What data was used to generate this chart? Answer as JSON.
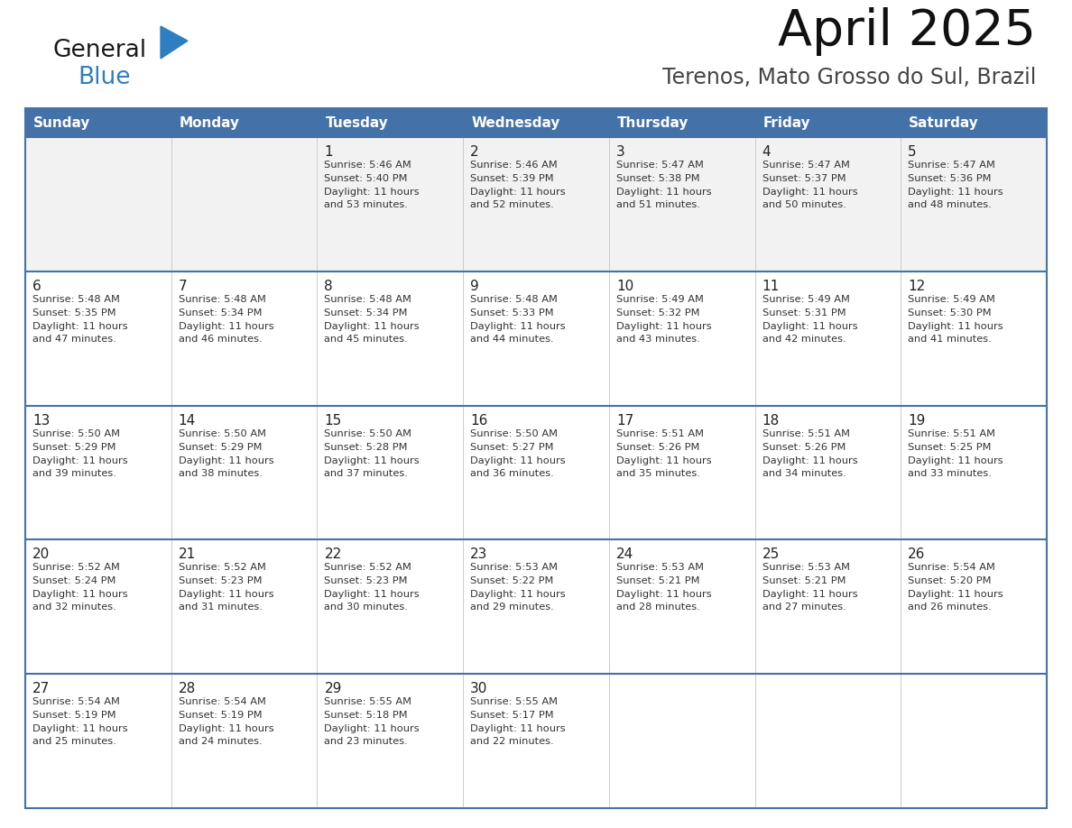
{
  "title": "April 2025",
  "subtitle": "Terenos, Mato Grosso do Sul, Brazil",
  "days_of_week": [
    "Sunday",
    "Monday",
    "Tuesday",
    "Wednesday",
    "Thursday",
    "Friday",
    "Saturday"
  ],
  "header_bg": "#4472a8",
  "header_text": "#ffffff",
  "row_separator_color": "#4472a8",
  "cell_bg": "#ffffff",
  "first_row_bg": "#f0f0f0",
  "text_color": "#333333",
  "day_number_color": "#222222",
  "calendar_data": [
    [
      null,
      null,
      {
        "day": 1,
        "sunrise": "5:46 AM",
        "sunset": "5:40 PM",
        "daylight": "11 hours and 53 minutes"
      },
      {
        "day": 2,
        "sunrise": "5:46 AM",
        "sunset": "5:39 PM",
        "daylight": "11 hours and 52 minutes"
      },
      {
        "day": 3,
        "sunrise": "5:47 AM",
        "sunset": "5:38 PM",
        "daylight": "11 hours and 51 minutes"
      },
      {
        "day": 4,
        "sunrise": "5:47 AM",
        "sunset": "5:37 PM",
        "daylight": "11 hours and 50 minutes"
      },
      {
        "day": 5,
        "sunrise": "5:47 AM",
        "sunset": "5:36 PM",
        "daylight": "11 hours and 48 minutes"
      }
    ],
    [
      {
        "day": 6,
        "sunrise": "5:48 AM",
        "sunset": "5:35 PM",
        "daylight": "11 hours and 47 minutes"
      },
      {
        "day": 7,
        "sunrise": "5:48 AM",
        "sunset": "5:34 PM",
        "daylight": "11 hours and 46 minutes"
      },
      {
        "day": 8,
        "sunrise": "5:48 AM",
        "sunset": "5:34 PM",
        "daylight": "11 hours and 45 minutes"
      },
      {
        "day": 9,
        "sunrise": "5:48 AM",
        "sunset": "5:33 PM",
        "daylight": "11 hours and 44 minutes"
      },
      {
        "day": 10,
        "sunrise": "5:49 AM",
        "sunset": "5:32 PM",
        "daylight": "11 hours and 43 minutes"
      },
      {
        "day": 11,
        "sunrise": "5:49 AM",
        "sunset": "5:31 PM",
        "daylight": "11 hours and 42 minutes"
      },
      {
        "day": 12,
        "sunrise": "5:49 AM",
        "sunset": "5:30 PM",
        "daylight": "11 hours and 41 minutes"
      }
    ],
    [
      {
        "day": 13,
        "sunrise": "5:50 AM",
        "sunset": "5:29 PM",
        "daylight": "11 hours and 39 minutes"
      },
      {
        "day": 14,
        "sunrise": "5:50 AM",
        "sunset": "5:29 PM",
        "daylight": "11 hours and 38 minutes"
      },
      {
        "day": 15,
        "sunrise": "5:50 AM",
        "sunset": "5:28 PM",
        "daylight": "11 hours and 37 minutes"
      },
      {
        "day": 16,
        "sunrise": "5:50 AM",
        "sunset": "5:27 PM",
        "daylight": "11 hours and 36 minutes"
      },
      {
        "day": 17,
        "sunrise": "5:51 AM",
        "sunset": "5:26 PM",
        "daylight": "11 hours and 35 minutes"
      },
      {
        "day": 18,
        "sunrise": "5:51 AM",
        "sunset": "5:26 PM",
        "daylight": "11 hours and 34 minutes"
      },
      {
        "day": 19,
        "sunrise": "5:51 AM",
        "sunset": "5:25 PM",
        "daylight": "11 hours and 33 minutes"
      }
    ],
    [
      {
        "day": 20,
        "sunrise": "5:52 AM",
        "sunset": "5:24 PM",
        "daylight": "11 hours and 32 minutes"
      },
      {
        "day": 21,
        "sunrise": "5:52 AM",
        "sunset": "5:23 PM",
        "daylight": "11 hours and 31 minutes"
      },
      {
        "day": 22,
        "sunrise": "5:52 AM",
        "sunset": "5:23 PM",
        "daylight": "11 hours and 30 minutes"
      },
      {
        "day": 23,
        "sunrise": "5:53 AM",
        "sunset": "5:22 PM",
        "daylight": "11 hours and 29 minutes"
      },
      {
        "day": 24,
        "sunrise": "5:53 AM",
        "sunset": "5:21 PM",
        "daylight": "11 hours and 28 minutes"
      },
      {
        "day": 25,
        "sunrise": "5:53 AM",
        "sunset": "5:21 PM",
        "daylight": "11 hours and 27 minutes"
      },
      {
        "day": 26,
        "sunrise": "5:54 AM",
        "sunset": "5:20 PM",
        "daylight": "11 hours and 26 minutes"
      }
    ],
    [
      {
        "day": 27,
        "sunrise": "5:54 AM",
        "sunset": "5:19 PM",
        "daylight": "11 hours and 25 minutes"
      },
      {
        "day": 28,
        "sunrise": "5:54 AM",
        "sunset": "5:19 PM",
        "daylight": "11 hours and 24 minutes"
      },
      {
        "day": 29,
        "sunrise": "5:55 AM",
        "sunset": "5:18 PM",
        "daylight": "11 hours and 23 minutes"
      },
      {
        "day": 30,
        "sunrise": "5:55 AM",
        "sunset": "5:17 PM",
        "daylight": "11 hours and 22 minutes"
      },
      null,
      null,
      null
    ]
  ],
  "logo_general_color": "#1a1a1a",
  "logo_blue_color": "#2e7fc2",
  "logo_triangle_color": "#2e7fc2"
}
